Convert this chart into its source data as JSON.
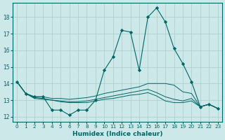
{
  "xlabel": "Humidex (Indice chaleur)",
  "bg_color": "#cce8e8",
  "grid_color": "#aacccc",
  "line_color": "#006666",
  "xlim": [
    -0.5,
    23.5
  ],
  "ylim": [
    11.7,
    18.85
  ],
  "yticks": [
    12,
    13,
    14,
    15,
    16,
    17,
    18
  ],
  "xticks": [
    0,
    1,
    2,
    3,
    4,
    5,
    6,
    7,
    8,
    9,
    10,
    11,
    12,
    13,
    14,
    15,
    16,
    17,
    18,
    19,
    20,
    21,
    22,
    23
  ],
  "line1_x": [
    0,
    1,
    2,
    3,
    4,
    5,
    6,
    7,
    8,
    9,
    10,
    11,
    12,
    13,
    14,
    15,
    16,
    17,
    18,
    19,
    20,
    21,
    22,
    23
  ],
  "line1_y": [
    14.1,
    13.4,
    13.2,
    13.2,
    12.4,
    12.4,
    12.1,
    12.4,
    12.4,
    13.0,
    14.8,
    15.6,
    17.2,
    17.1,
    14.8,
    18.0,
    18.55,
    17.7,
    16.1,
    15.2,
    14.1,
    12.6,
    12.75,
    12.5
  ],
  "line2_x": [
    0,
    1,
    2,
    3,
    4,
    5,
    6,
    7,
    8,
    9,
    10,
    11,
    12,
    13,
    14,
    15,
    16,
    17,
    18,
    19,
    20,
    21,
    22,
    23
  ],
  "line2_y": [
    14.1,
    13.4,
    13.2,
    13.2,
    13.1,
    13.1,
    13.05,
    13.1,
    13.15,
    13.25,
    13.4,
    13.5,
    13.6,
    13.7,
    13.8,
    14.0,
    14.0,
    14.0,
    13.9,
    13.5,
    13.4,
    12.6,
    12.75,
    12.5
  ],
  "line3_x": [
    0,
    1,
    2,
    3,
    4,
    5,
    6,
    7,
    8,
    9,
    10,
    11,
    12,
    13,
    14,
    15,
    16,
    17,
    18,
    19,
    20,
    21,
    22,
    23
  ],
  "line3_y": [
    14.1,
    13.4,
    13.15,
    13.1,
    13.0,
    12.95,
    12.9,
    12.9,
    12.95,
    13.05,
    13.15,
    13.25,
    13.35,
    13.45,
    13.55,
    13.65,
    13.45,
    13.2,
    13.05,
    12.95,
    13.1,
    12.6,
    12.75,
    12.5
  ],
  "line4_x": [
    0,
    1,
    2,
    3,
    4,
    5,
    6,
    7,
    8,
    9,
    10,
    11,
    12,
    13,
    14,
    15,
    16,
    17,
    18,
    19,
    20,
    21,
    22,
    23
  ],
  "line4_y": [
    14.1,
    13.4,
    13.1,
    13.05,
    13.0,
    12.9,
    12.85,
    12.85,
    12.85,
    12.95,
    13.05,
    13.1,
    13.2,
    13.3,
    13.35,
    13.45,
    13.25,
    12.95,
    12.85,
    12.85,
    12.95,
    12.6,
    12.75,
    12.5
  ]
}
